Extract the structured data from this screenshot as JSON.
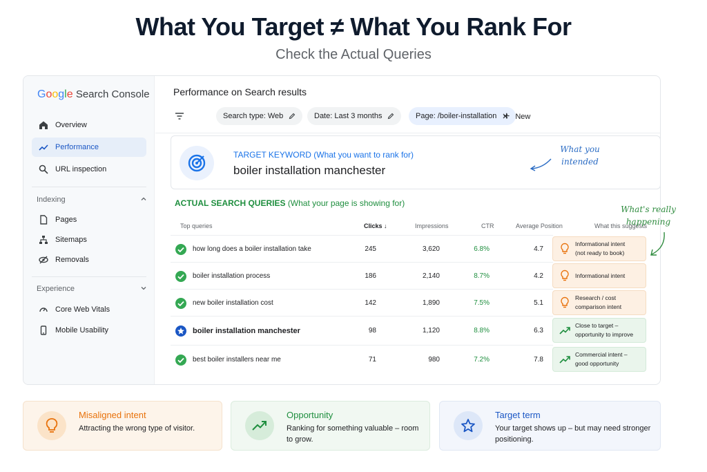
{
  "headline": "What You Target ≠ What You Rank For",
  "subhead": "Check the Actual Queries",
  "console": {
    "logo": {
      "google": "Google",
      "product": "Search Console"
    },
    "nav": {
      "overview": "Overview",
      "performance": "Performance",
      "url_inspection": "URL inspection",
      "indexing": "Indexing",
      "pages": "Pages",
      "sitemaps": "Sitemaps",
      "removals": "Removals",
      "experience": "Experience",
      "core_web_vitals": "Core Web Vitals",
      "mobile_usability": "Mobile Usability"
    },
    "title": "Performance on Search results",
    "filters": {
      "search_type": "Search type: Web",
      "date": "Date: Last 3 months",
      "page": "Page: /boiler-installation",
      "new": "New"
    },
    "target": {
      "label": "TARGET KEYWORD",
      "hint": "(What you want to rank for)",
      "keyword": "boiler installation manchester"
    },
    "note_blue": {
      "line1": "What you",
      "line2": "intended"
    },
    "actual": {
      "label": "ACTUAL SEARCH QUERIES",
      "hint": "(What your page is showing for)"
    },
    "columns": {
      "query": "Top queries",
      "clicks": "Clicks",
      "impressions": "Impressions",
      "ctr": "CTR",
      "position": "Average Position",
      "suggests": "What this suggests"
    },
    "rows": [
      {
        "query": "how long does a boiler installation take",
        "clicks": "245",
        "impressions": "3,620",
        "ctr": "6.8%",
        "position": "4.7",
        "suggest_line1": "Informational intent",
        "suggest_line2": "(not ready to book)",
        "tone": "orange",
        "icon": "check-circle-icon"
      },
      {
        "query": "boiler installation process",
        "clicks": "186",
        "impressions": "2,140",
        "ctr": "8.7%",
        "position": "4.2",
        "suggest_line1": "Informational intent",
        "suggest_line2": "",
        "tone": "orange",
        "icon": "check-circle-icon"
      },
      {
        "query": "new boiler installation cost",
        "clicks": "142",
        "impressions": "1,890",
        "ctr": "7.5%",
        "position": "5.1",
        "suggest_line1": "Research / cost",
        "suggest_line2": "comparison intent",
        "tone": "orange",
        "icon": "check-circle-icon"
      },
      {
        "query": "boiler installation manchester",
        "clicks": "98",
        "impressions": "1,120",
        "ctr": "8.8%",
        "position": "6.3",
        "suggest_line1": "Close to target –",
        "suggest_line2": "opportunity to improve",
        "tone": "green",
        "icon": "star-circle-icon"
      },
      {
        "query": "best boiler installers near me",
        "clicks": "71",
        "impressions": "980",
        "ctr": "7.2%",
        "position": "7.8",
        "suggest_line1": "Commercial intent –",
        "suggest_line2": "good opportunity",
        "tone": "green",
        "icon": "check-circle-icon"
      }
    ]
  },
  "note_green": {
    "line1": "What's really",
    "line2": "happening"
  },
  "cards": [
    {
      "title": "Misaligned intent",
      "desc": "Attracting the wrong type of visitor.",
      "icon": "lightbulb-icon"
    },
    {
      "title": "Opportunity",
      "desc": "Ranking for something valuable – room to grow.",
      "icon": "trending-up-icon"
    },
    {
      "title": "Target term",
      "desc": "Your target shows up – but may need stronger positioning.",
      "icon": "star-icon"
    }
  ],
  "colors": {
    "orange": "#e8710a",
    "green": "#1e8e3e",
    "blue": "#1a73e8"
  }
}
